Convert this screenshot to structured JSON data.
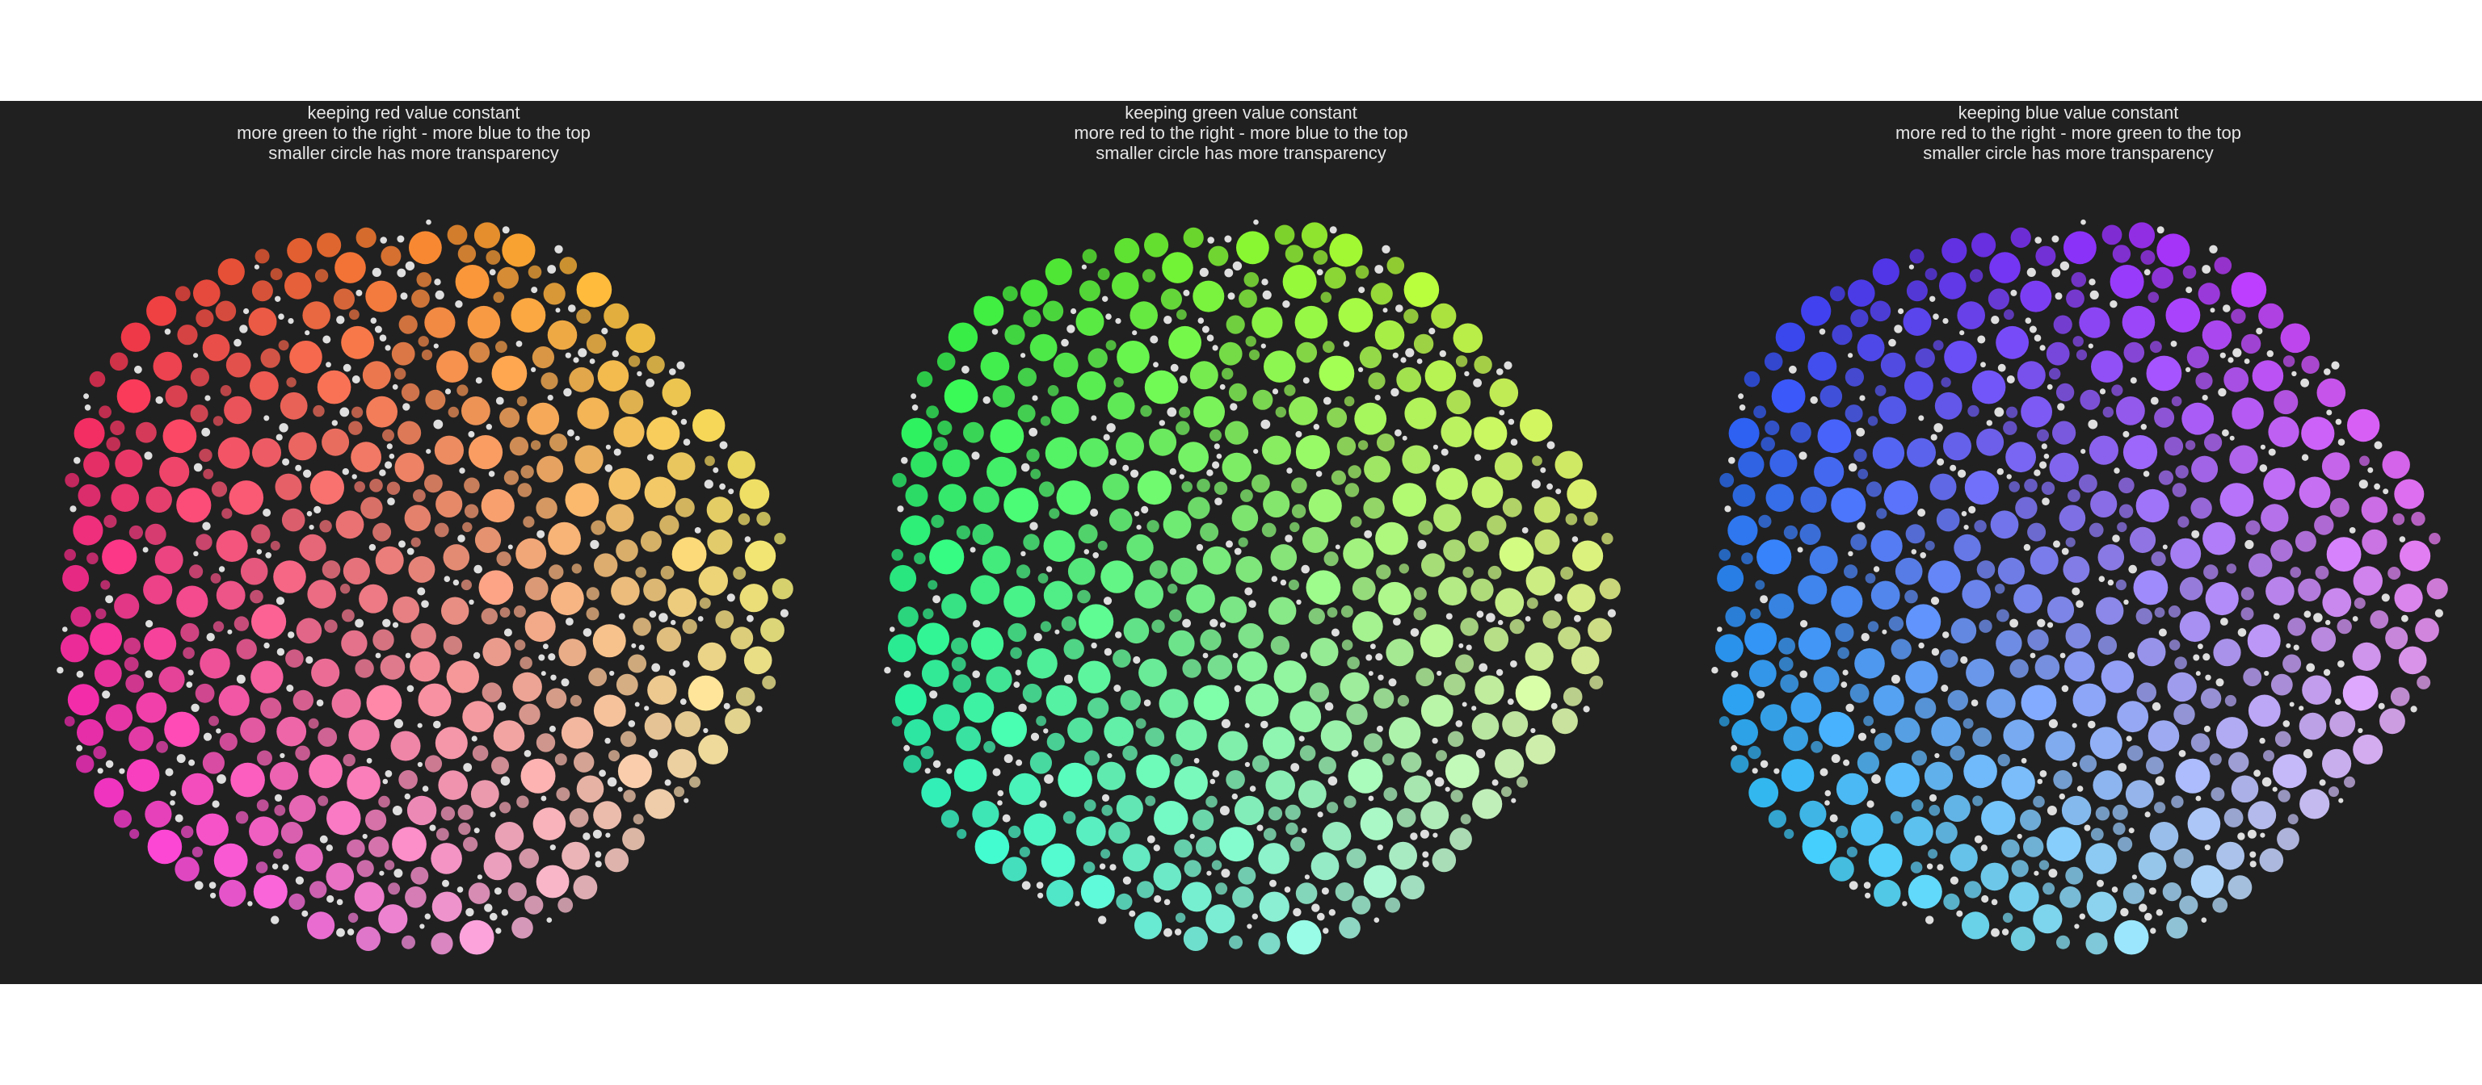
{
  "panels": [
    {
      "constant_channel": "red",
      "title_lines": [
        "keeping red value constant",
        "more green to the right - more blue to the top",
        "smaller circle has more transparency"
      ]
    },
    {
      "constant_channel": "green",
      "title_lines": [
        "keeping green value constant",
        "more red to the right - more blue to the top",
        "smaller circle has more transparency"
      ]
    },
    {
      "constant_channel": "blue",
      "title_lines": [
        "keeping blue value constant",
        "more red to the right - more green to the top",
        "smaller circle has more transparency"
      ]
    }
  ],
  "colors": {
    "background": "#202020",
    "page": "#ffffff",
    "title_text": "#e6e6e6"
  }
}
